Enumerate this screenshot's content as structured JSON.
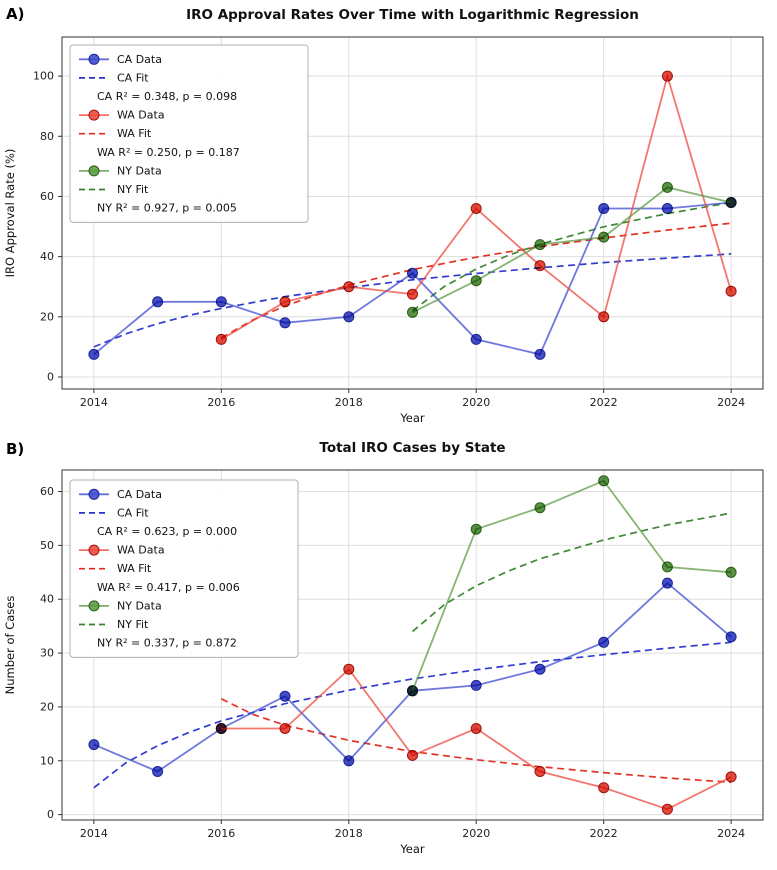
{
  "panels": [
    {
      "label": "A)"
    },
    {
      "label": "B)"
    }
  ],
  "chart_data": [
    {
      "type": "line",
      "title": "IRO Approval Rates Over Time with Logarithmic Regression",
      "xlabel": "Year",
      "ylabel": "IRO Approval Rate (%)",
      "xlim": [
        2013.5,
        2024.5
      ],
      "ylim": [
        -4,
        113
      ],
      "xticks": [
        2014,
        2016,
        2018,
        2020,
        2022,
        2024
      ],
      "yticks": [
        0,
        20,
        40,
        60,
        80,
        100
      ],
      "grid": true,
      "legend_position": "upper-left",
      "series": [
        {
          "name": "CA Data",
          "color": "#3f4cd1",
          "marker_color": "#2e3ac0",
          "edge": "#1c2699",
          "x": [
            2014,
            2015,
            2016,
            2017,
            2018,
            2019,
            2020,
            2021,
            2022,
            2023,
            2024
          ],
          "y": [
            7.5,
            25,
            25,
            18,
            20,
            34.5,
            12.5,
            7.5,
            56,
            56,
            58
          ]
        },
        {
          "name": "WA Data",
          "color": "#ee4b3f",
          "marker_color": "#e03528",
          "edge": "#a01208",
          "x": [
            2016,
            2017,
            2018,
            2019,
            2020,
            2021,
            2022,
            2023,
            2024
          ],
          "y": [
            12.5,
            25,
            30,
            27.5,
            56,
            37,
            20,
            100,
            28.5
          ]
        },
        {
          "name": "NY Data",
          "color": "#5d9c44",
          "marker_color": "#47862e",
          "edge": "#2c601a",
          "x": [
            2019,
            2020,
            2021,
            2022,
            2023,
            2024
          ],
          "y": [
            21.5,
            32,
            44,
            46.5,
            63,
            58
          ]
        }
      ],
      "fits": [
        {
          "name": "CA Fit",
          "color": "#2533cc",
          "x": [
            2014,
            2014.5,
            2015,
            2015.5,
            2016,
            2017,
            2018,
            2019,
            2020,
            2021,
            2022,
            2023,
            2024
          ],
          "y": [
            10.0,
            14.3,
            17.7,
            20.5,
            22.8,
            26.7,
            29.7,
            32.3,
            34.4,
            36.3,
            38.0,
            39.5,
            40.9
          ]
        },
        {
          "name": "WA Fit",
          "color": "#e2281a",
          "x": [
            2016,
            2016.5,
            2017,
            2017.5,
            2018,
            2019,
            2020,
            2021,
            2022,
            2023,
            2024
          ],
          "y": [
            13.0,
            19.0,
            23.6,
            27.3,
            30.5,
            35.7,
            39.8,
            43.3,
            46.2,
            48.8,
            51.1
          ]
        },
        {
          "name": "NY Fit",
          "color": "#35822a",
          "x": [
            2019,
            2019.5,
            2020,
            2020.5,
            2021,
            2022,
            2023,
            2024
          ],
          "y": [
            22.0,
            30.1,
            35.9,
            40.4,
            44.1,
            49.9,
            54.3,
            58.0
          ]
        }
      ],
      "stats": [
        {
          "state": "CA",
          "r_squared": 0.348,
          "p_value": 0.098
        },
        {
          "state": "WA",
          "r_squared": 0.25,
          "p_value": 0.187
        },
        {
          "state": "NY",
          "r_squared": 0.927,
          "p_value": 0.005
        }
      ],
      "legend": [
        {
          "handle": "line-marker",
          "color": "#3f4cd1",
          "edge": "#1c2699",
          "label": "CA Data"
        },
        {
          "handle": "dash",
          "color": "#2533cc",
          "label": "CA Fit"
        },
        {
          "handle": "none",
          "label": "CA R² = 0.348, p = 0.098"
        },
        {
          "handle": "line-marker",
          "color": "#ee4b3f",
          "edge": "#a01208",
          "label": "WA Data"
        },
        {
          "handle": "dash",
          "color": "#e2281a",
          "label": "WA Fit"
        },
        {
          "handle": "none",
          "label": "WA R² = 0.250, p = 0.187"
        },
        {
          "handle": "line-marker",
          "color": "#5d9c44",
          "edge": "#2c601a",
          "label": "NY Data"
        },
        {
          "handle": "dash",
          "color": "#35822a",
          "label": "NY Fit"
        },
        {
          "handle": "none",
          "label": "NY R² = 0.927, p = 0.005"
        }
      ]
    },
    {
      "type": "line",
      "title": "Total IRO Cases by State",
      "xlabel": "Year",
      "ylabel": "Number of Cases",
      "xlim": [
        2013.5,
        2024.5
      ],
      "ylim": [
        -1,
        64
      ],
      "xticks": [
        2014,
        2016,
        2018,
        2020,
        2022,
        2024
      ],
      "yticks": [
        0,
        10,
        20,
        30,
        40,
        50,
        60
      ],
      "grid": true,
      "legend_position": "upper-left",
      "series": [
        {
          "name": "CA Data",
          "color": "#3f4cd1",
          "marker_color": "#2e3ac0",
          "edge": "#1c2699",
          "x": [
            2014,
            2015,
            2016,
            2017,
            2018,
            2019,
            2020,
            2021,
            2022,
            2023,
            2024
          ],
          "y": [
            13,
            8,
            16,
            22,
            10,
            23,
            24,
            27,
            32,
            43,
            33
          ]
        },
        {
          "name": "WA Data",
          "color": "#ee4b3f",
          "marker_color": "#e03528",
          "edge": "#a01208",
          "x": [
            2016,
            2017,
            2018,
            2019,
            2020,
            2021,
            2022,
            2023,
            2024
          ],
          "y": [
            16,
            16,
            27,
            11,
            16,
            8,
            5,
            1,
            7
          ]
        },
        {
          "name": "NY Data",
          "color": "#5d9c44",
          "marker_color": "#47862e",
          "edge": "#2c601a",
          "x": [
            2019,
            2020,
            2021,
            2022,
            2023,
            2024
          ],
          "y": [
            23,
            53,
            57,
            62,
            46,
            45
          ]
        }
      ],
      "fits": [
        {
          "name": "CA Fit",
          "color": "#2533cc",
          "x": [
            2014,
            2014.5,
            2015,
            2015.5,
            2016,
            2017,
            2018,
            2019,
            2020,
            2021,
            2022,
            2023,
            2024
          ],
          "y": [
            5.0,
            9.6,
            12.8,
            15.3,
            17.4,
            20.6,
            23.1,
            25.2,
            26.9,
            28.4,
            29.7,
            30.9,
            32.0
          ]
        },
        {
          "name": "WA Fit",
          "color": "#e2281a",
          "x": [
            2016,
            2016.5,
            2017,
            2018,
            2019,
            2020,
            2021,
            2022,
            2023,
            2024
          ],
          "y": [
            21.5,
            18.6,
            16.6,
            13.8,
            11.7,
            10.2,
            8.9,
            7.8,
            6.8,
            6.0
          ]
        },
        {
          "name": "NY Fit",
          "color": "#35822a",
          "x": [
            2019,
            2019.5,
            2020,
            2020.5,
            2021,
            2022,
            2023,
            2024
          ],
          "y": [
            34.0,
            39.0,
            42.5,
            45.2,
            47.5,
            51.0,
            53.8,
            56.0
          ]
        }
      ],
      "stats": [
        {
          "state": "CA",
          "r_squared": 0.623,
          "p_value": 0.0
        },
        {
          "state": "WA",
          "r_squared": 0.417,
          "p_value": 0.006
        },
        {
          "state": "NY",
          "r_squared": 0.337,
          "p_value": 0.872
        }
      ],
      "legend": [
        {
          "handle": "line-marker",
          "color": "#3f4cd1",
          "edge": "#1c2699",
          "label": "CA Data"
        },
        {
          "handle": "dash",
          "color": "#2533cc",
          "label": "CA Fit"
        },
        {
          "handle": "none",
          "label": "CA R² = 0.623, p = 0.000"
        },
        {
          "handle": "line-marker",
          "color": "#ee4b3f",
          "edge": "#a01208",
          "label": "WA Data"
        },
        {
          "handle": "dash",
          "color": "#e2281a",
          "label": "WA Fit"
        },
        {
          "handle": "none",
          "label": "WA R² = 0.417, p = 0.006"
        },
        {
          "handle": "line-marker",
          "color": "#5d9c44",
          "edge": "#2c601a",
          "label": "NY Data"
        },
        {
          "handle": "dash",
          "color": "#35822a",
          "label": "NY Fit"
        },
        {
          "handle": "none",
          "label": "NY R² = 0.337, p = 0.872"
        }
      ]
    }
  ]
}
